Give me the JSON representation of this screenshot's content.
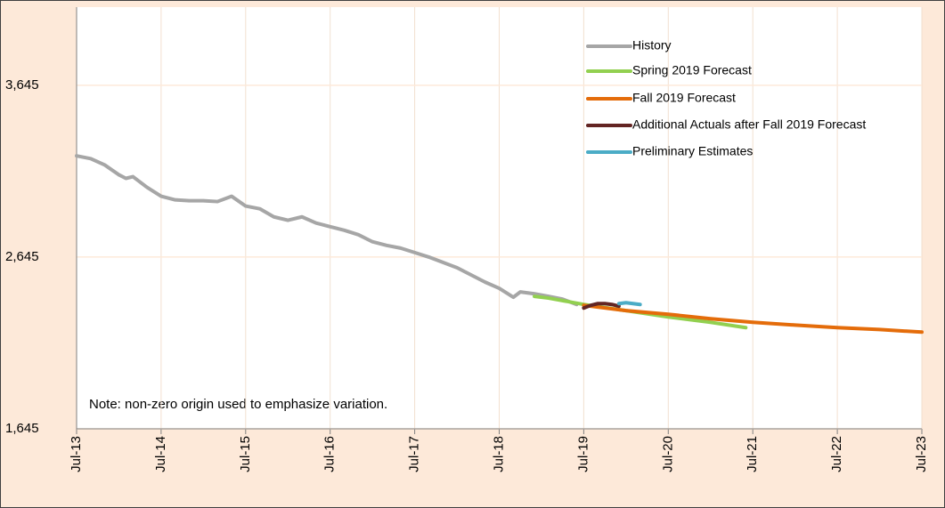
{
  "chart_data": {
    "type": "line",
    "annotation": "Note: non-zero origin used to emphasize variation.",
    "ylim": [
      1645,
      4100
    ],
    "yticks": [
      {
        "value": 1645,
        "label": "1,645"
      },
      {
        "value": 2645,
        "label": "2,645"
      },
      {
        "value": 3645,
        "label": "3,645"
      }
    ],
    "xticks": [
      "Jul-13",
      "Jul-14",
      "Jul-15",
      "Jul-16",
      "Jul-17",
      "Jul-18",
      "Jul-19",
      "Jul-20",
      "Jul-21",
      "Jul-22",
      "Jul-23"
    ],
    "grid": true,
    "legend": "top-right",
    "series": [
      {
        "name": "History",
        "color": "#a6a6a6",
        "x": [
          "Jul-13",
          "Sep-13",
          "Nov-13",
          "Jan-14",
          "Feb-14",
          "Mar-14",
          "May-14",
          "Jul-14",
          "Sep-14",
          "Nov-14",
          "Jan-15",
          "Mar-15",
          "May-15",
          "Jul-15",
          "Sep-15",
          "Nov-15",
          "Jan-16",
          "Mar-16",
          "May-16",
          "Jul-16",
          "Sep-16",
          "Nov-16",
          "Jan-17",
          "Mar-17",
          "May-17",
          "Jul-17",
          "Sep-17",
          "Nov-17",
          "Jan-18",
          "Mar-18",
          "May-18",
          "Jul-18",
          "Sep-18",
          "Oct-18",
          "Dec-18",
          "Feb-19",
          "Apr-19",
          "Jun-19"
        ],
        "values": [
          3234,
          3218,
          3181,
          3124,
          3103,
          3113,
          3051,
          2999,
          2978,
          2973,
          2973,
          2968,
          2999,
          2942,
          2926,
          2879,
          2859,
          2879,
          2843,
          2822,
          2801,
          2775,
          2734,
          2713,
          2697,
          2671,
          2645,
          2614,
          2583,
          2541,
          2499,
          2463,
          2411,
          2442,
          2431,
          2416,
          2400,
          2369
        ]
      },
      {
        "name": "Spring 2019 Forecast",
        "color": "#92d050",
        "x": [
          "Dec-18",
          "Feb-19",
          "Jul-19",
          "Jan-20",
          "Jul-20",
          "Jan-21",
          "Jun-21"
        ],
        "values": [
          2416,
          2406,
          2369,
          2333,
          2296,
          2265,
          2234
        ]
      },
      {
        "name": "Fall 2019 Forecast",
        "color": "#e46c0a",
        "x": [
          "Jul-19",
          "Jan-20",
          "Jul-20",
          "Jan-21",
          "Jul-21",
          "Jan-22",
          "Jul-22",
          "Jan-23",
          "Jul-23"
        ],
        "values": [
          2364,
          2333,
          2312,
          2286,
          2265,
          2249,
          2234,
          2223,
          2208
        ]
      },
      {
        "name": "Additional Actuals after Fall 2019 Forecast",
        "color": "#632523",
        "x": [
          "Jul-19",
          "Aug-19",
          "Sep-19",
          "Oct-19",
          "Nov-19",
          "Dec-19"
        ],
        "values": [
          2348,
          2364,
          2374,
          2374,
          2369,
          2359
        ]
      },
      {
        "name": "Preliminary Estimates",
        "color": "#4bacc6",
        "x": [
          "Dec-19",
          "Jan-20",
          "Mar-20"
        ],
        "values": [
          2374,
          2379,
          2369
        ]
      }
    ]
  }
}
